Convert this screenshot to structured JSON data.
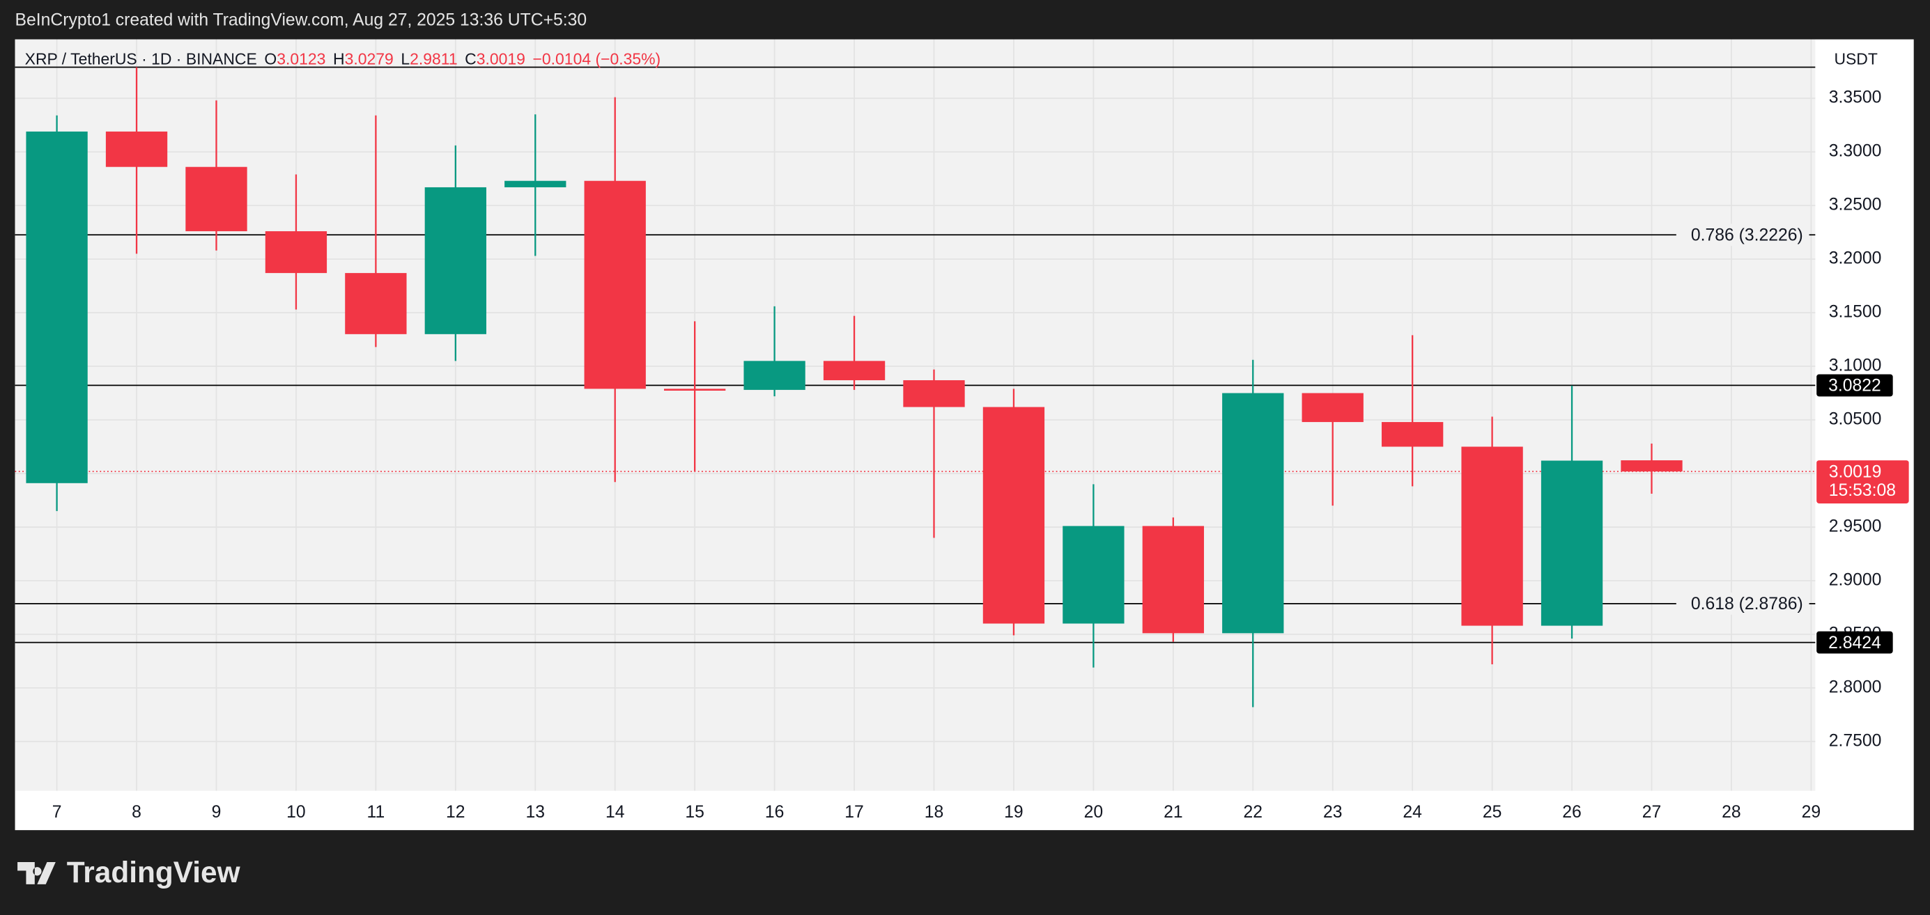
{
  "header": {
    "text": "BeInCrypto1 created with TradingView.com, Aug 27, 2025 13:36 UTC+5:30"
  },
  "chart_data": {
    "type": "candlestick",
    "symbol": "XRP / TetherUS · 1D · BINANCE",
    "ohlc_letters": [
      "O",
      "H",
      "L",
      "C"
    ],
    "last": {
      "open": 3.0123,
      "high": 3.0279,
      "low": 2.9811,
      "close": 3.0019,
      "change": "−0.0104 (−0.35%)"
    },
    "currency": "USDT",
    "categories": [
      "7",
      "8",
      "9",
      "10",
      "11",
      "12",
      "13",
      "14",
      "15",
      "16",
      "17",
      "18",
      "19",
      "20",
      "21",
      "22",
      "23",
      "24",
      "25",
      "26",
      "27",
      "28",
      "29"
    ],
    "open": [
      2.991,
      3.319,
      3.286,
      3.226,
      3.187,
      3.13,
      3.267,
      3.273,
      3.079,
      3.078,
      3.105,
      3.087,
      3.062,
      2.86,
      2.951,
      2.851,
      3.075,
      3.048,
      3.025,
      2.858,
      3.0123,
      null,
      null
    ],
    "high": [
      3.334,
      3.379,
      3.348,
      3.279,
      3.334,
      3.306,
      3.335,
      3.351,
      3.142,
      3.156,
      3.147,
      3.097,
      3.079,
      2.99,
      2.959,
      3.106,
      3.075,
      3.129,
      3.053,
      3.082,
      3.0279,
      null,
      null
    ],
    "low": [
      2.965,
      3.205,
      3.208,
      3.153,
      3.118,
      3.105,
      3.203,
      2.992,
      3.002,
      3.072,
      3.078,
      2.94,
      2.849,
      2.819,
      2.843,
      2.782,
      2.97,
      2.988,
      2.822,
      2.846,
      2.9811,
      null,
      null
    ],
    "close": [
      3.319,
      3.286,
      3.226,
      3.187,
      3.13,
      3.267,
      3.273,
      3.079,
      3.078,
      3.105,
      3.087,
      3.062,
      2.86,
      2.951,
      2.851,
      3.075,
      3.048,
      3.025,
      2.858,
      3.012,
      3.0019,
      null,
      null
    ],
    "up_color": "#089981",
    "down_color": "#f23645",
    "ylim": [
      2.704,
      3.405
    ],
    "yticks": [
      {
        "value": 2.75,
        "label": "2.7500"
      },
      {
        "value": 2.8,
        "label": "2.8000"
      },
      {
        "value": 2.85,
        "label": "2.8500"
      },
      {
        "value": 2.9,
        "label": "2.9000"
      },
      {
        "value": 2.95,
        "label": "2.9500"
      },
      {
        "value": 3.0,
        "label": "3.0000"
      },
      {
        "value": 3.05,
        "label": "3.0500"
      },
      {
        "value": 3.1,
        "label": "3.1000"
      },
      {
        "value": 3.15,
        "label": "3.1500"
      },
      {
        "value": 3.2,
        "label": "3.2000"
      },
      {
        "value": 3.25,
        "label": "3.2500"
      },
      {
        "value": 3.3,
        "label": "3.3000"
      },
      {
        "value": 3.35,
        "label": "3.3500"
      }
    ],
    "grid": true,
    "levels": [
      {
        "value": 3.379
      },
      {
        "value": 3.2226,
        "label": "0.786 (3.2226)"
      },
      {
        "value": 3.0822,
        "boxed": true
      },
      {
        "value": 2.8786,
        "label": "0.618 (2.8786)"
      },
      {
        "value": 2.8424,
        "boxed": true
      }
    ],
    "price_line": {
      "value": 3.0019,
      "countdown": "15:53:08"
    }
  },
  "footer": {
    "logo": "TradingView"
  }
}
